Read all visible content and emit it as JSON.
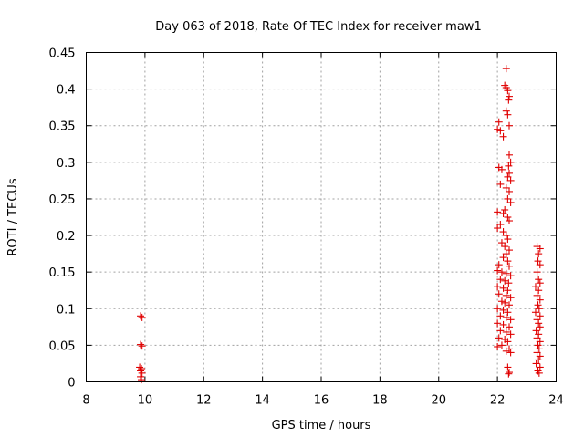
{
  "chart_data": {
    "type": "scatter",
    "title": "Day 063 of 2018, Rate Of TEC Index for receiver maw1",
    "xlabel": "GPS time / hours",
    "ylabel": "ROTI / TECUs",
    "xlim": [
      8,
      24
    ],
    "ylim": [
      0,
      0.45
    ],
    "x_ticks": [
      8,
      10,
      12,
      14,
      16,
      18,
      20,
      22,
      24
    ],
    "x_tick_labels": [
      "8",
      "10",
      "12",
      "14",
      "16",
      "18",
      "20",
      "22",
      "24"
    ],
    "y_ticks": [
      0,
      0.05,
      0.1,
      0.15,
      0.2,
      0.25,
      0.3,
      0.35,
      0.4,
      0.45
    ],
    "y_tick_labels": [
      "0",
      "0.05",
      "0.1",
      "0.15",
      "0.2",
      "0.25",
      "0.3",
      "0.35",
      "0.4",
      "0.45"
    ],
    "grid": true,
    "marker": "+",
    "series": [
      {
        "name": "ROTI",
        "color": "#e00000",
        "points": [
          [
            9.85,
            0.09
          ],
          [
            9.9,
            0.088
          ],
          [
            9.85,
            0.051
          ],
          [
            9.9,
            0.049
          ],
          [
            9.82,
            0.02
          ],
          [
            9.88,
            0.018
          ],
          [
            9.85,
            0.015
          ],
          [
            9.9,
            0.012
          ],
          [
            9.85,
            0.007
          ],
          [
            9.88,
            0.003
          ],
          [
            22.3,
            0.428
          ],
          [
            22.25,
            0.405
          ],
          [
            22.3,
            0.402
          ],
          [
            22.35,
            0.398
          ],
          [
            22.4,
            0.39
          ],
          [
            22.38,
            0.385
          ],
          [
            22.3,
            0.37
          ],
          [
            22.35,
            0.365
          ],
          [
            22.05,
            0.355
          ],
          [
            22.0,
            0.345
          ],
          [
            22.1,
            0.343
          ],
          [
            22.4,
            0.35
          ],
          [
            22.2,
            0.335
          ],
          [
            22.4,
            0.31
          ],
          [
            22.45,
            0.3
          ],
          [
            22.38,
            0.295
          ],
          [
            22.4,
            0.285
          ],
          [
            22.35,
            0.28
          ],
          [
            22.45,
            0.275
          ],
          [
            22.05,
            0.293
          ],
          [
            22.15,
            0.29
          ],
          [
            22.1,
            0.27
          ],
          [
            22.3,
            0.265
          ],
          [
            22.4,
            0.26
          ],
          [
            22.35,
            0.25
          ],
          [
            22.45,
            0.245
          ],
          [
            22.25,
            0.235
          ],
          [
            22.2,
            0.23
          ],
          [
            22.0,
            0.232
          ],
          [
            22.35,
            0.225
          ],
          [
            22.4,
            0.22
          ],
          [
            22.1,
            0.215
          ],
          [
            22.0,
            0.21
          ],
          [
            22.2,
            0.205
          ],
          [
            22.3,
            0.2
          ],
          [
            22.35,
            0.195
          ],
          [
            22.15,
            0.19
          ],
          [
            22.25,
            0.185
          ],
          [
            22.4,
            0.18
          ],
          [
            22.3,
            0.175
          ],
          [
            22.2,
            0.17
          ],
          [
            22.35,
            0.165
          ],
          [
            22.05,
            0.16
          ],
          [
            22.4,
            0.158
          ],
          [
            22.0,
            0.152
          ],
          [
            22.15,
            0.15
          ],
          [
            22.3,
            0.148
          ],
          [
            22.45,
            0.145
          ],
          [
            22.1,
            0.14
          ],
          [
            22.25,
            0.138
          ],
          [
            22.38,
            0.135
          ],
          [
            22.0,
            0.13
          ],
          [
            22.2,
            0.128
          ],
          [
            22.35,
            0.125
          ],
          [
            22.05,
            0.12
          ],
          [
            22.3,
            0.118
          ],
          [
            22.45,
            0.115
          ],
          [
            22.15,
            0.11
          ],
          [
            22.25,
            0.108
          ],
          [
            22.4,
            0.105
          ],
          [
            22.0,
            0.1
          ],
          [
            22.2,
            0.098
          ],
          [
            22.35,
            0.095
          ],
          [
            22.1,
            0.09
          ],
          [
            22.3,
            0.088
          ],
          [
            22.45,
            0.085
          ],
          [
            22.0,
            0.08
          ],
          [
            22.2,
            0.078
          ],
          [
            22.4,
            0.075
          ],
          [
            22.1,
            0.07
          ],
          [
            22.3,
            0.068
          ],
          [
            22.45,
            0.065
          ],
          [
            22.05,
            0.06
          ],
          [
            22.25,
            0.058
          ],
          [
            22.35,
            0.055
          ],
          [
            22.15,
            0.05
          ],
          [
            22.0,
            0.048
          ],
          [
            22.4,
            0.045
          ],
          [
            22.3,
            0.042
          ],
          [
            22.45,
            0.04
          ],
          [
            22.35,
            0.02
          ],
          [
            22.4,
            0.013
          ],
          [
            22.38,
            0.011
          ],
          [
            23.35,
            0.185
          ],
          [
            23.45,
            0.182
          ],
          [
            23.4,
            0.175
          ],
          [
            23.38,
            0.165
          ],
          [
            23.45,
            0.16
          ],
          [
            23.35,
            0.15
          ],
          [
            23.4,
            0.14
          ],
          [
            23.45,
            0.135
          ],
          [
            23.3,
            0.13
          ],
          [
            23.4,
            0.125
          ],
          [
            23.35,
            0.118
          ],
          [
            23.45,
            0.112
          ],
          [
            23.38,
            0.105
          ],
          [
            23.42,
            0.1
          ],
          [
            23.3,
            0.095
          ],
          [
            23.45,
            0.09
          ],
          [
            23.35,
            0.085
          ],
          [
            23.4,
            0.08
          ],
          [
            23.45,
            0.075
          ],
          [
            23.32,
            0.07
          ],
          [
            23.4,
            0.065
          ],
          [
            23.35,
            0.06
          ],
          [
            23.45,
            0.055
          ],
          [
            23.38,
            0.05
          ],
          [
            23.42,
            0.045
          ],
          [
            23.35,
            0.04
          ],
          [
            23.45,
            0.035
          ],
          [
            23.4,
            0.03
          ],
          [
            23.32,
            0.025
          ],
          [
            23.45,
            0.02
          ],
          [
            23.38,
            0.015
          ],
          [
            23.42,
            0.012
          ]
        ]
      }
    ]
  }
}
